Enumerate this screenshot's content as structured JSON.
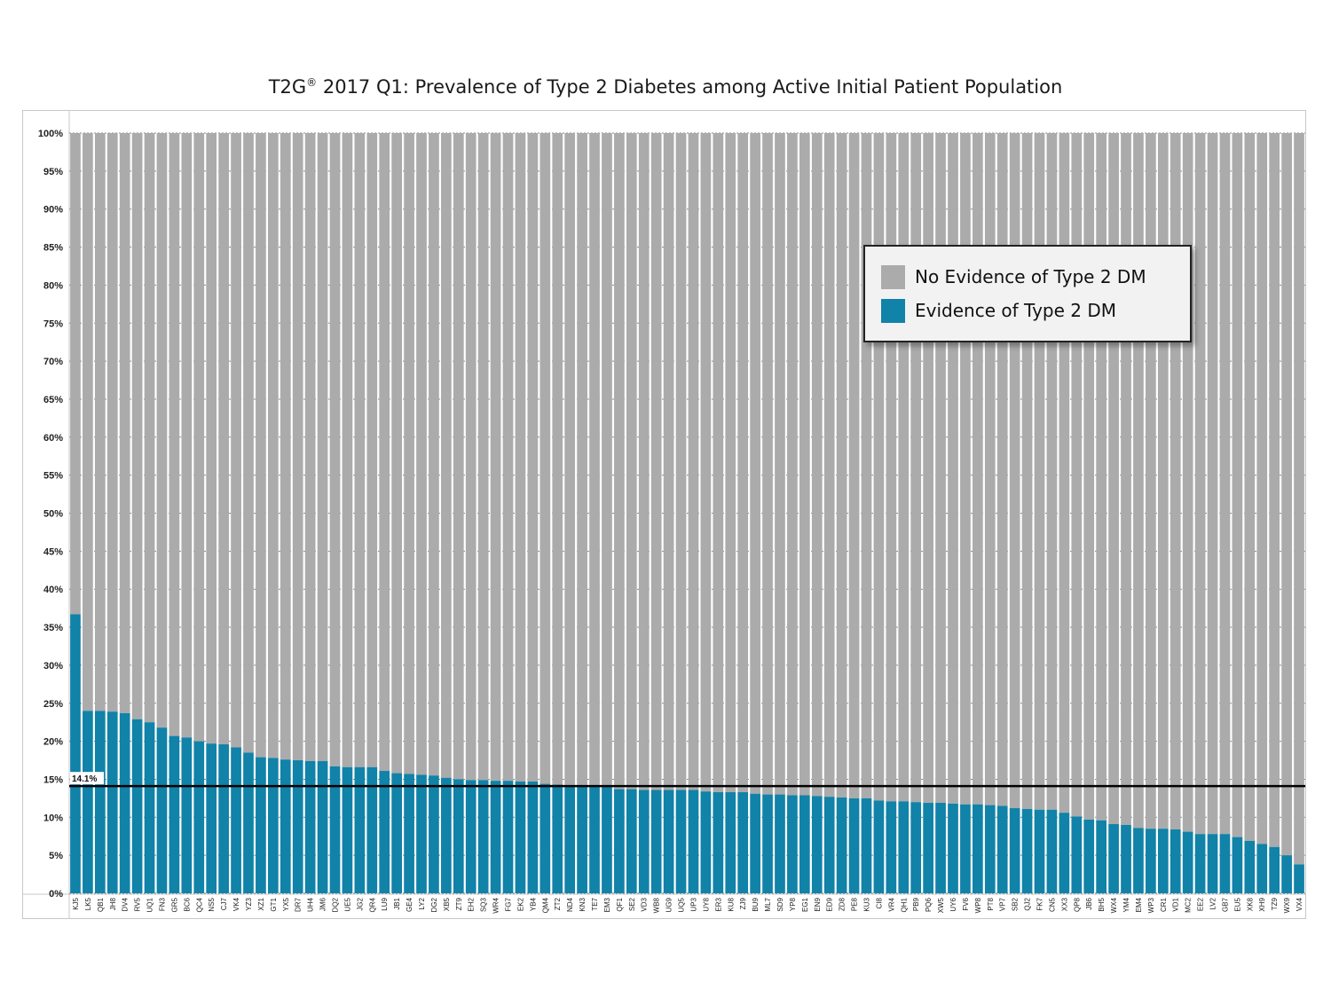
{
  "title_main": "T2G",
  "title_sup": "®",
  "title_rest": " 2017 Q1: Prevalence of Type 2 Diabetes among Active Initial Patient Population",
  "colors": {
    "no_evidence": "#ababab",
    "evidence": "#1182a8",
    "reference_line": "#000000"
  },
  "legend": {
    "items": [
      {
        "label": "No Evidence of Type 2 DM",
        "color": "#ababab"
      },
      {
        "label": "Evidence of Type 2 DM",
        "color": "#1182a8"
      }
    ]
  },
  "chart_data": {
    "type": "bar",
    "stacked": true,
    "percent_stacked": true,
    "ylim": [
      0,
      100
    ],
    "y_ticks": [
      "0%",
      "5%",
      "10%",
      "15%",
      "20%",
      "25%",
      "30%",
      "35%",
      "40%",
      "45%",
      "50%",
      "55%",
      "60%",
      "65%",
      "70%",
      "75%",
      "80%",
      "85%",
      "90%",
      "95%",
      "100%"
    ],
    "y_tick_values": [
      0,
      5,
      10,
      15,
      20,
      25,
      30,
      35,
      40,
      45,
      50,
      55,
      60,
      65,
      70,
      75,
      80,
      85,
      90,
      95,
      100
    ],
    "grid": "horizontal dashed",
    "legend_position": "top-right",
    "reference_line": {
      "value": 14.1,
      "label": "14.1%"
    },
    "categories": [
      "KJ5",
      "LK5",
      "QB1",
      "JH8",
      "DV4",
      "RV5",
      "UQ1",
      "FN3",
      "GR5",
      "BC6",
      "QC4",
      "NS5",
      "CJ7",
      "VK4",
      "YZ3",
      "XZ1",
      "GT1",
      "YX5",
      "DR7",
      "UH4",
      "JM6",
      "DQ2",
      "UE5",
      "JG2",
      "QR4",
      "LU9",
      "JB1",
      "GE4",
      "LY2",
      "DG2",
      "XB5",
      "ZT9",
      "EH2",
      "SQ3",
      "WR4",
      "FG7",
      "EK2",
      "YB4",
      "QM4",
      "ZT2",
      "ND4",
      "KN3",
      "TE7",
      "EM3",
      "QF1",
      "SE2",
      "VD3",
      "WB8",
      "UG9",
      "UQ5",
      "UP3",
      "UY8",
      "ER3",
      "KU8",
      "ZJ9",
      "BU9",
      "ML7",
      "SD9",
      "YP8",
      "EG1",
      "EN9",
      "ED9",
      "ZD8",
      "PE8",
      "KU3",
      "CI8",
      "VR4",
      "QH1",
      "PB9",
      "PQ6",
      "XW5",
      "UY6",
      "FV6",
      "WP8",
      "PT8",
      "VP7",
      "SB2",
      "QJ2",
      "FK7",
      "CN5",
      "XX3",
      "QP8",
      "JB6",
      "BH5",
      "WX4",
      "YM4",
      "EM4",
      "WP3",
      "CR1",
      "VD1",
      "MC2",
      "EE2",
      "LV2",
      "GB7",
      "EU5",
      "XK8",
      "XH9",
      "TZ9",
      "WX9",
      "VX4"
    ],
    "series": [
      {
        "name": "Evidence of Type 2 DM",
        "values": [
          36.7,
          24.0,
          24.0,
          23.9,
          23.7,
          22.9,
          22.5,
          21.8,
          20.7,
          20.5,
          20.0,
          19.7,
          19.6,
          19.2,
          18.5,
          17.9,
          17.8,
          17.6,
          17.5,
          17.4,
          17.4,
          16.7,
          16.6,
          16.6,
          16.6,
          16.1,
          15.8,
          15.7,
          15.6,
          15.5,
          15.2,
          15.0,
          14.9,
          14.9,
          14.8,
          14.8,
          14.7,
          14.7,
          14.4,
          14.3,
          14.2,
          14.1,
          14.0,
          14.0,
          13.7,
          13.7,
          13.6,
          13.6,
          13.6,
          13.6,
          13.6,
          13.4,
          13.3,
          13.3,
          13.3,
          13.1,
          13.0,
          13.0,
          12.9,
          12.9,
          12.8,
          12.7,
          12.6,
          12.5,
          12.5,
          12.2,
          12.1,
          12.1,
          12.0,
          11.9,
          11.9,
          11.8,
          11.7,
          11.7,
          11.6,
          11.5,
          11.2,
          11.1,
          11.0,
          11.0,
          10.6,
          10.1,
          9.7,
          9.6,
          9.1,
          9.0,
          8.6,
          8.5,
          8.5,
          8.4,
          8.1,
          7.8,
          7.8,
          7.8,
          7.4,
          6.9,
          6.5,
          6.1,
          5.0,
          3.8
        ]
      },
      {
        "name": "No Evidence of Type 2 DM",
        "values": [
          63.3,
          76.0,
          76.0,
          76.1,
          76.3,
          77.1,
          77.5,
          78.2,
          79.3,
          79.5,
          80.0,
          80.3,
          80.4,
          80.8,
          81.5,
          82.1,
          82.2,
          82.4,
          82.5,
          82.6,
          82.6,
          83.3,
          83.4,
          83.4,
          83.4,
          83.9,
          84.2,
          84.3,
          84.4,
          84.5,
          84.8,
          85.0,
          85.1,
          85.1,
          85.2,
          85.2,
          85.3,
          85.3,
          85.6,
          85.7,
          85.8,
          85.9,
          86.0,
          86.0,
          86.3,
          86.3,
          86.4,
          86.4,
          86.4,
          86.4,
          86.4,
          86.6,
          86.7,
          86.7,
          86.7,
          86.9,
          87.0,
          87.0,
          87.1,
          87.1,
          87.2,
          87.3,
          87.4,
          87.5,
          87.5,
          87.8,
          87.9,
          87.9,
          88.0,
          88.1,
          88.1,
          88.2,
          88.3,
          88.3,
          88.4,
          88.5,
          88.8,
          88.9,
          89.0,
          89.0,
          89.4,
          89.9,
          90.3,
          90.4,
          90.9,
          91.0,
          91.4,
          91.5,
          91.5,
          91.6,
          91.9,
          92.2,
          92.2,
          92.2,
          92.6,
          93.1,
          93.5,
          93.9,
          95.0,
          96.2
        ]
      }
    ]
  }
}
